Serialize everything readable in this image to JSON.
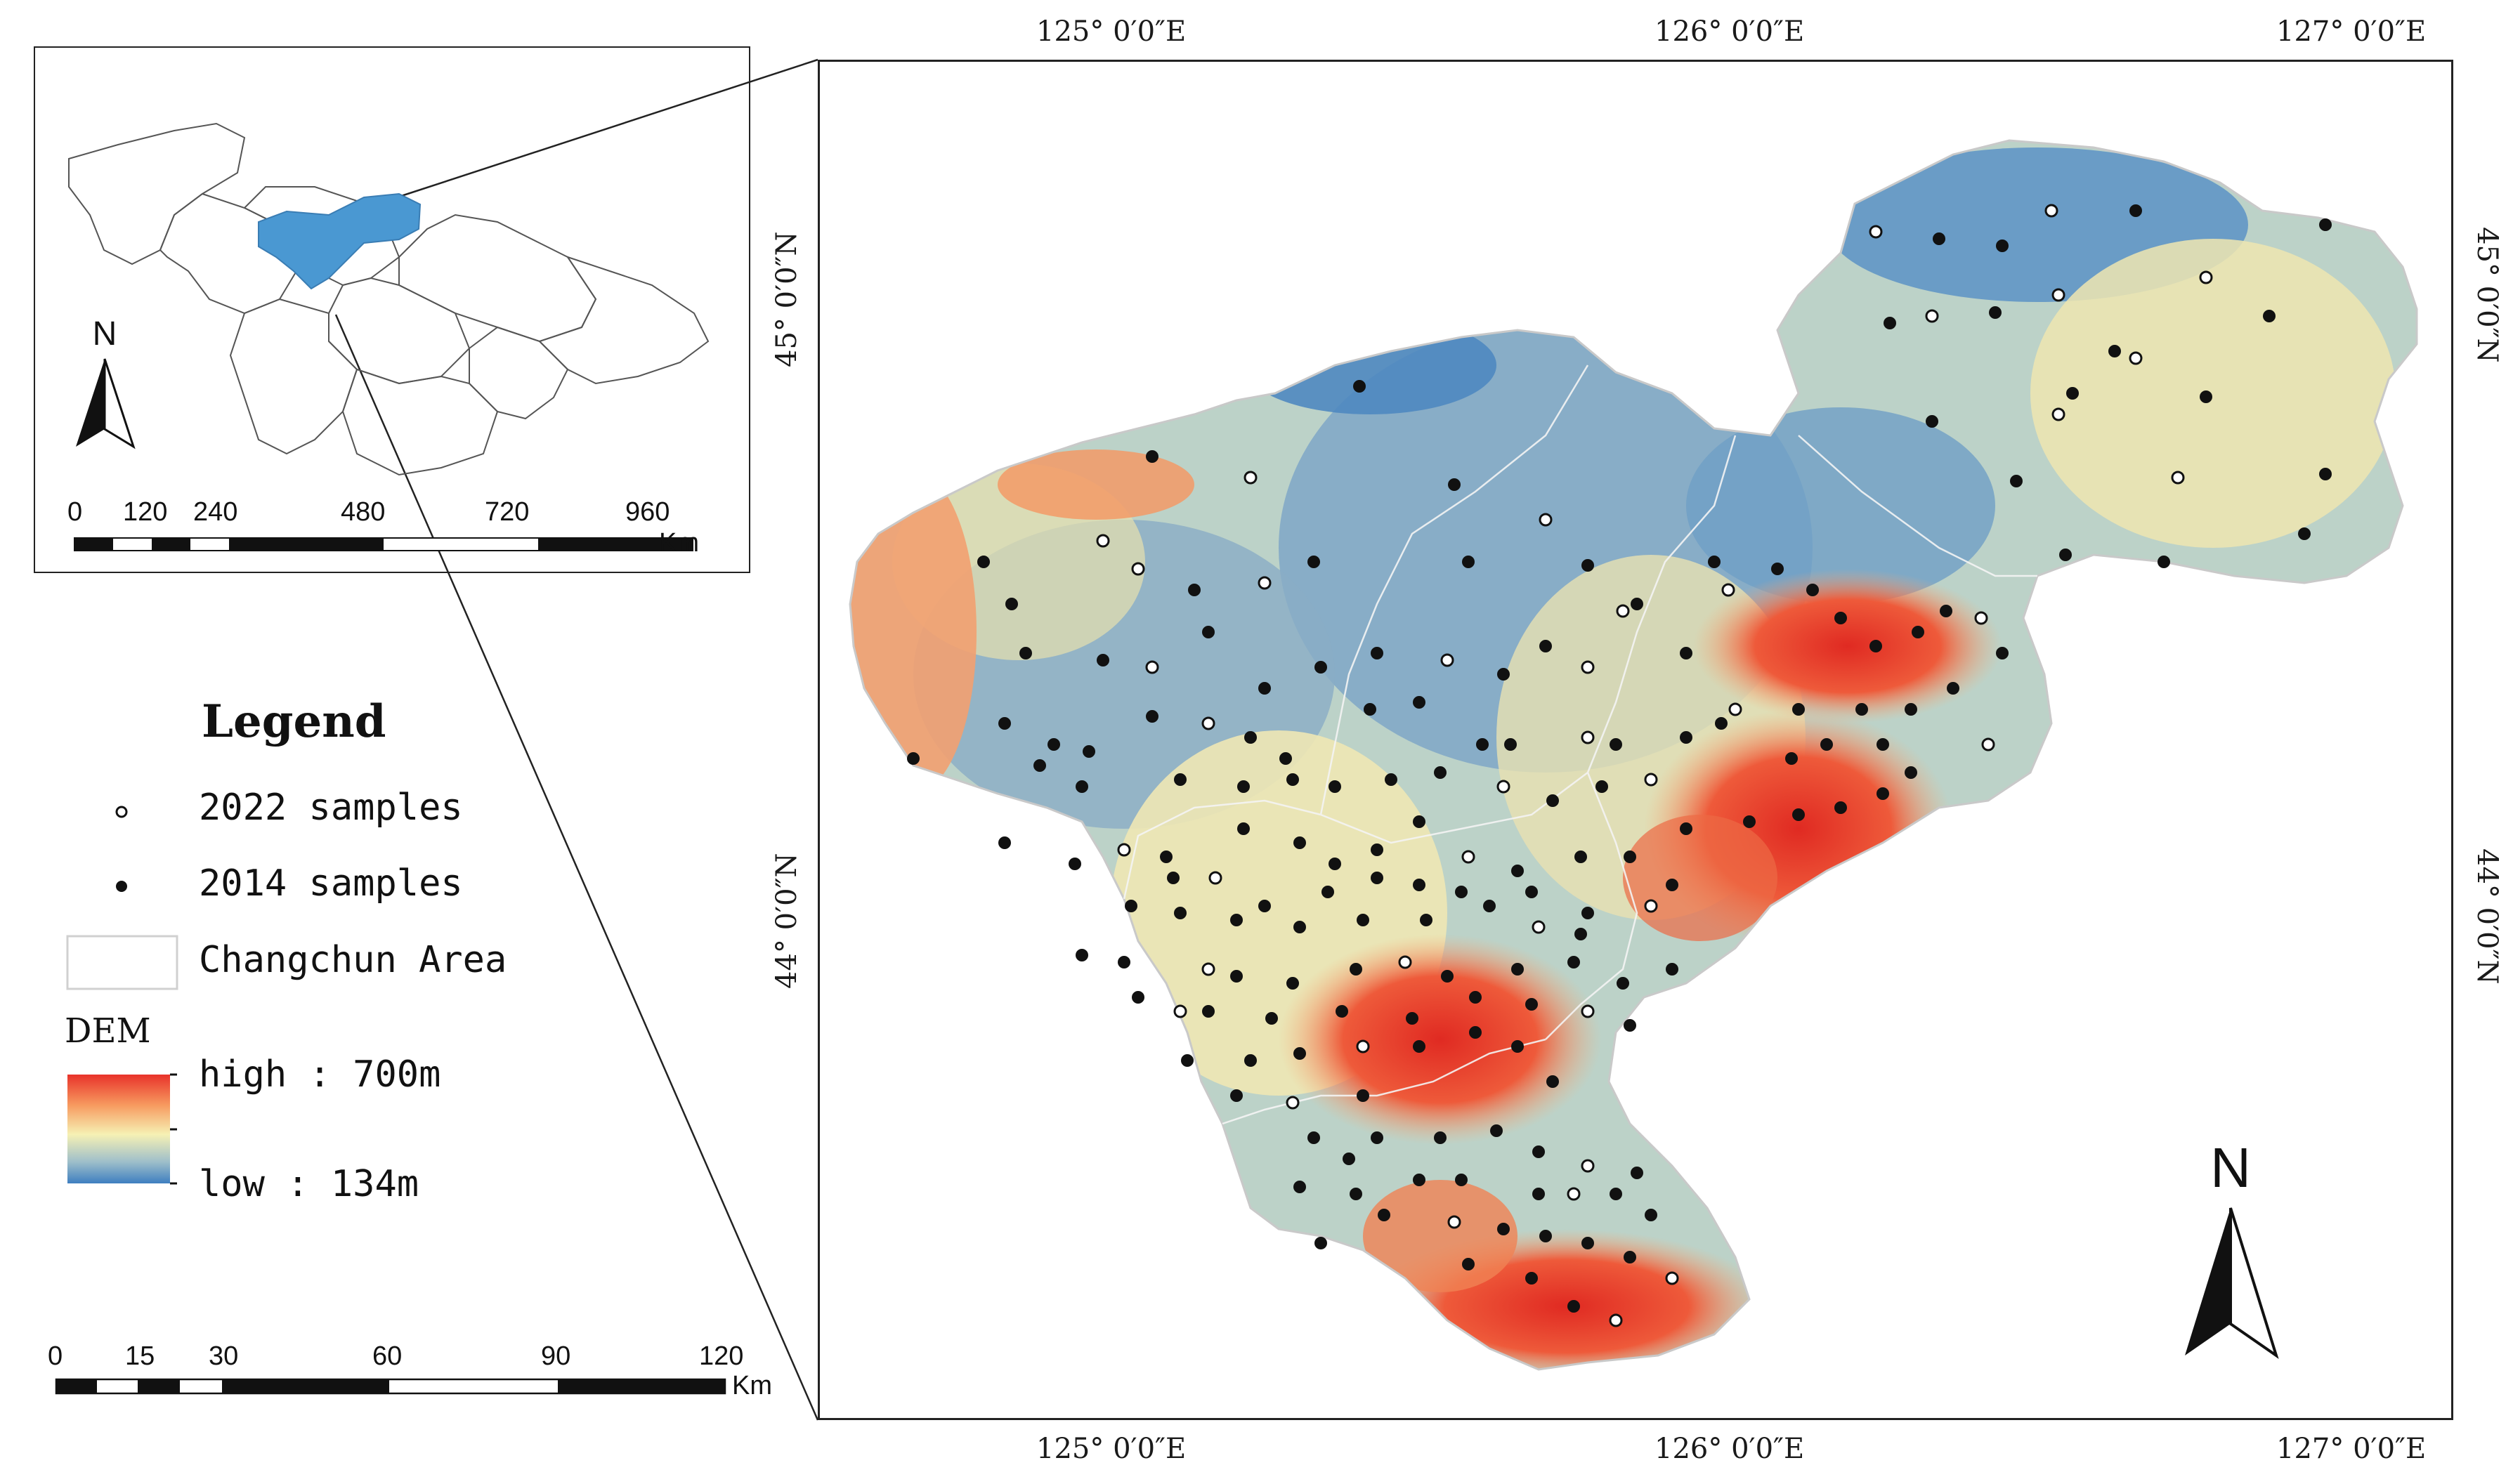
{
  "coordinates": {
    "top_lon": [
      "125° 0′0″E",
      "126° 0′0″E",
      "127° 0′0″E"
    ],
    "bottom_lon": [
      "125° 0′0″E",
      "126° 0′0″E",
      "127° 0′0″E"
    ],
    "left_lat": [
      "45° 0′0″N",
      "44° 0′0″N"
    ],
    "right_lat": [
      "45° 0′0″N",
      "44° 0′0″N"
    ]
  },
  "inset": {
    "north_label": "N",
    "scale_ticks": [
      "0",
      "120",
      "240",
      "480",
      "720",
      "960"
    ],
    "scale_unit": "Km",
    "highlight_color": "#4a98d2"
  },
  "legend": {
    "title": "Legend",
    "samples_2022": "2022 samples",
    "samples_2014": "2014 samples",
    "area": "Changchun Area",
    "dem_title": "DEM",
    "dem_high": "high : 700m",
    "dem_low": "low : 134m"
  },
  "main_scale": {
    "ticks": [
      "0",
      "15",
      "30",
      "60",
      "90",
      "120"
    ],
    "unit": "Km"
  },
  "main_north_label": "N",
  "dem_colors": [
    "#e8322a",
    "#f79a5f",
    "#f6f1b4",
    "#9fbfca",
    "#3e7fc0"
  ]
}
